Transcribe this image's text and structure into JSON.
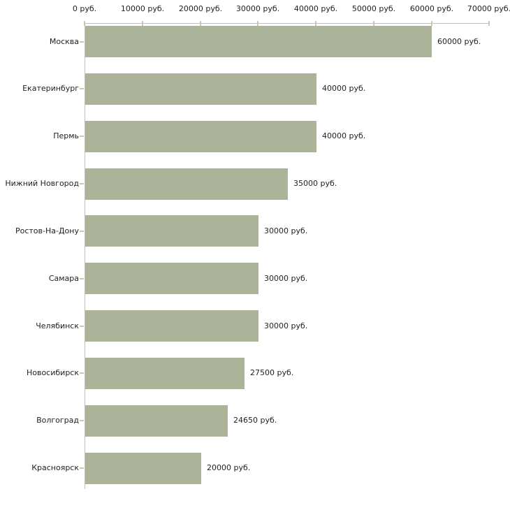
{
  "chart_data": {
    "type": "bar",
    "orientation": "horizontal",
    "title": "",
    "xlabel": "",
    "ylabel": "",
    "unit": "руб.",
    "categories": [
      "Москва",
      "Екатеринбург",
      "Пермь",
      "Нижний Новгород",
      "Ростов-На-Дону",
      "Самара",
      "Челябинск",
      "Новосибирск",
      "Волгоград",
      "Красноярск"
    ],
    "values": [
      60000,
      40000,
      40000,
      35000,
      30000,
      30000,
      30000,
      27500,
      24650,
      20000
    ],
    "value_labels": [
      "60000 руб.",
      "40000 руб.",
      "40000 руб.",
      "35000 руб.",
      "30000 руб.",
      "30000 руб.",
      "30000 руб.",
      "27500 руб.",
      "24650 руб.",
      "20000 руб."
    ],
    "x_ticks": [
      0,
      10000,
      20000,
      30000,
      40000,
      50000,
      60000,
      70000
    ],
    "x_tick_labels": [
      "0 руб.",
      "10000 руб.",
      "20000 руб.",
      "30000 руб.",
      "40000 руб.",
      "50000 руб.",
      "60000 руб.",
      "70000 руб."
    ],
    "xlim": [
      0,
      70000
    ],
    "grid": false,
    "legend": null,
    "colors": {
      "bar": "#abb399",
      "axis_line": "#c1c1c1",
      "tick_mark": "#c9c9a9",
      "text": "#1e1e1e",
      "background": "#ffffff"
    }
  }
}
